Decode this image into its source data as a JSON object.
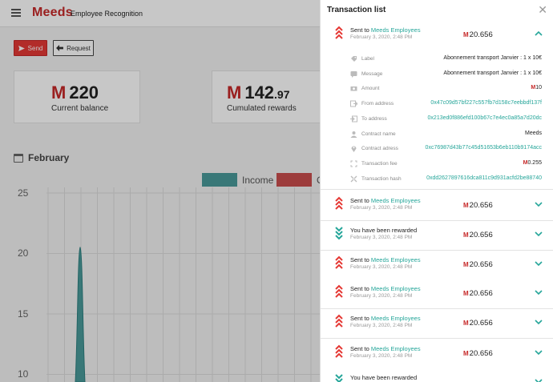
{
  "app": {
    "logo": "Meeds",
    "title": "Employee Recognition",
    "send_label": "Send",
    "request_label": "Request",
    "balance": {
      "whole": "220",
      "label": "Current balance"
    },
    "rewards": {
      "whole": "142",
      "decimals": ".97",
      "label": "Cumulated rewards"
    },
    "month": "February",
    "legend": {
      "income": "Income",
      "outgoing": "O"
    },
    "y_ticks": [
      "25",
      "20",
      "15",
      "10"
    ],
    "currency_symbol": "M"
  },
  "chart_data": {
    "type": "area",
    "ylim": [
      0,
      25
    ],
    "series": [
      {
        "name": "Income",
        "color": "#4a9a9a",
        "peak": 20.5
      }
    ]
  },
  "drawer": {
    "title": "Transaction list",
    "currency_symbol": "M",
    "expanded": {
      "prefix": "Sent to",
      "party": "Meeds Employees",
      "date": "February 3, 2020, 2:48 PM",
      "amount": "20.656",
      "details": [
        {
          "icon": "tag-icon",
          "label": "Label",
          "value": "Abonnement transport Janvier : 1 x 10€"
        },
        {
          "icon": "message-icon",
          "label": "Message",
          "value": "Abonnement transport Janvier : 1 x 10€"
        },
        {
          "icon": "amount-icon",
          "label": "Amount",
          "value": "10"
        },
        {
          "icon": "from-address-icon",
          "label": "From address",
          "value": "0x47c09d57bf227c557fb7d158c7eebbdf137f"
        },
        {
          "icon": "to-address-icon",
          "label": "To address",
          "value": "0x213ed0f886efd100b67c7e4ec0a85a7d20dc"
        },
        {
          "icon": "contract-name-icon",
          "label": "Contract name",
          "value": "Meeds"
        },
        {
          "icon": "location-icon",
          "label": "Contract adress",
          "value": "0xc76987d43b77c45d51653b6eb110b9174acc"
        },
        {
          "icon": "fee-icon",
          "label": "Transaction fee",
          "value": "0.255"
        },
        {
          "icon": "hash-icon",
          "label": "Transaction hash",
          "value": "0xdd2627897616dca811c9d931acfd2be88740"
        }
      ]
    },
    "items": [
      {
        "type": "sent",
        "prefix": "Sent to",
        "party": "Meeds Employees",
        "date": "February 3, 2020, 2:48 PM",
        "amount": "20.656"
      },
      {
        "type": "reward",
        "prefix": "You have been rewarded",
        "party": "",
        "date": "February 3, 2020, 2:48 PM",
        "amount": "20.656"
      },
      {
        "type": "sent",
        "prefix": "Sent to",
        "party": "Meeds Employees",
        "date": "February 3, 2020, 2:48 PM",
        "amount": "20.656"
      },
      {
        "type": "sent",
        "prefix": "Sent to",
        "party": "Meeds Employees",
        "date": "February 3, 2020, 2:48 PM",
        "amount": "20.656"
      },
      {
        "type": "sent",
        "prefix": "Sent to",
        "party": "Meeds Employees",
        "date": "February 3, 2020, 2:48 PM",
        "amount": "20.656"
      },
      {
        "type": "sent",
        "prefix": "Sent to",
        "party": "Meeds Employees",
        "date": "February 3, 2020, 2:48 PM",
        "amount": "20.656"
      },
      {
        "type": "reward",
        "prefix": "You have been rewarded",
        "party": "",
        "date": "",
        "amount": ""
      }
    ],
    "colors": {
      "sent": "#e53935",
      "reward": "#26a69a"
    }
  }
}
